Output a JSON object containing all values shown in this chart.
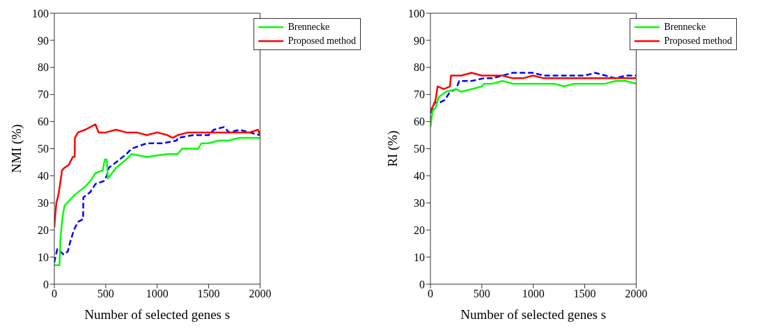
{
  "chart_data": [
    {
      "type": "line",
      "xlabel": "Number of selected genes s",
      "ylabel": "NMI (%)",
      "xlim": [
        0,
        2000
      ],
      "xticks": [
        0,
        500,
        1000,
        1500,
        2000
      ],
      "ylim": [
        0,
        100
      ],
      "yticks": [
        0,
        10,
        20,
        30,
        40,
        50,
        60,
        70,
        80,
        90,
        100
      ],
      "grid": false,
      "legend": "top right",
      "marker": "none",
      "series": [
        {
          "color": "#0000ff",
          "line_style": "dashed",
          "x": [
            0,
            10,
            30,
            60,
            90,
            130,
            150,
            190,
            230,
            280,
            282,
            350,
            400,
            480,
            510,
            530,
            600,
            700,
            750,
            900,
            1050,
            1190,
            1200,
            1350,
            1500,
            1550,
            1650,
            1700,
            1800,
            1900,
            2000
          ],
          "values": [
            8,
            10,
            13,
            12,
            11,
            12,
            15,
            20,
            23,
            24,
            32,
            34,
            37,
            38,
            40,
            43,
            45,
            48,
            50,
            52,
            52,
            53,
            54,
            55,
            55,
            57,
            58,
            56,
            57,
            56,
            55
          ]
        },
        {
          "name": "Brennecke",
          "color": "#00ff00",
          "line_style": "solid",
          "x": [
            0,
            50,
            60,
            80,
            100,
            150,
            200,
            300,
            350,
            400,
            470,
            490,
            510,
            520,
            600,
            700,
            750,
            900,
            1100,
            1200,
            1240,
            1300,
            1400,
            1430,
            1500,
            1600,
            1700,
            1800,
            1900,
            2000
          ],
          "values": [
            7,
            7,
            17,
            25,
            29,
            31,
            33,
            36,
            38,
            41,
            42,
            46,
            46,
            39,
            43,
            46,
            48,
            47,
            48,
            48,
            50,
            50,
            50,
            52,
            52,
            53,
            53,
            54,
            54,
            54
          ]
        },
        {
          "name": "Proposed method",
          "color": "#ff0000",
          "line_style": "solid",
          "x": [
            0,
            10,
            20,
            40,
            60,
            75,
            100,
            140,
            180,
            198,
            200,
            230,
            300,
            350,
            400,
            430,
            500,
            600,
            700,
            800,
            900,
            1000,
            1100,
            1150,
            1200,
            1300,
            1400,
            1500,
            1600,
            1700,
            1800,
            1900,
            1980,
            2000
          ],
          "values": [
            21,
            26,
            30,
            33,
            38,
            42,
            43,
            44,
            47,
            47,
            54,
            56,
            57,
            58,
            59,
            56,
            56,
            57,
            56,
            56,
            55,
            56,
            55,
            54,
            55,
            56,
            56,
            56,
            56,
            56,
            56,
            56,
            57,
            55
          ]
        }
      ]
    },
    {
      "type": "line",
      "xlabel": "Number of selected genes s",
      "ylabel": "RI (%)",
      "xlim": [
        0,
        2000
      ],
      "xticks": [
        0,
        500,
        1000,
        1500,
        2000
      ],
      "ylim": [
        0,
        100
      ],
      "yticks": [
        0,
        10,
        20,
        30,
        40,
        50,
        60,
        70,
        80,
        90,
        100
      ],
      "grid": false,
      "legend": "top right",
      "marker": "none",
      "series": [
        {
          "color": "#0000ff",
          "line_style": "dashed",
          "x": [
            0,
            10,
            40,
            90,
            140,
            190,
            250,
            280,
            400,
            520,
            600,
            700,
            800,
            900,
            1000,
            1100,
            1200,
            1300,
            1400,
            1500,
            1600,
            1700,
            1800,
            1900,
            2000
          ],
          "values": [
            60,
            64,
            67,
            67,
            68,
            71,
            72,
            75,
            75,
            76,
            76,
            77,
            78,
            78,
            78,
            77,
            77,
            77,
            77,
            77,
            78,
            77,
            76,
            77,
            77
          ]
        },
        {
          "name": "Brennecke",
          "color": "#00ff00",
          "line_style": "solid",
          "x": [
            0,
            20,
            50,
            80,
            150,
            250,
            300,
            400,
            500,
            520,
            600,
            700,
            800,
            900,
            1000,
            1100,
            1200,
            1300,
            1400,
            1500,
            1600,
            1700,
            1800,
            1900,
            2000
          ],
          "values": [
            58,
            64,
            65,
            69,
            71,
            72,
            71,
            72,
            73,
            74,
            74,
            75,
            74,
            74,
            74,
            74,
            74,
            73,
            74,
            74,
            74,
            74,
            75,
            75,
            74
          ]
        },
        {
          "name": "Proposed method",
          "color": "#ff0000",
          "line_style": "solid",
          "x": [
            0,
            30,
            50,
            70,
            130,
            190,
            200,
            300,
            400,
            500,
            600,
            700,
            800,
            900,
            1000,
            1100,
            1200,
            1300,
            1400,
            1500,
            1600,
            1700,
            1800,
            1900,
            2000
          ],
          "values": [
            64,
            66,
            68,
            73,
            72,
            73,
            77,
            77,
            78,
            77,
            77,
            77,
            76,
            76,
            77,
            76,
            76,
            76,
            76,
            76,
            76,
            76,
            76,
            76,
            76
          ]
        }
      ]
    }
  ]
}
